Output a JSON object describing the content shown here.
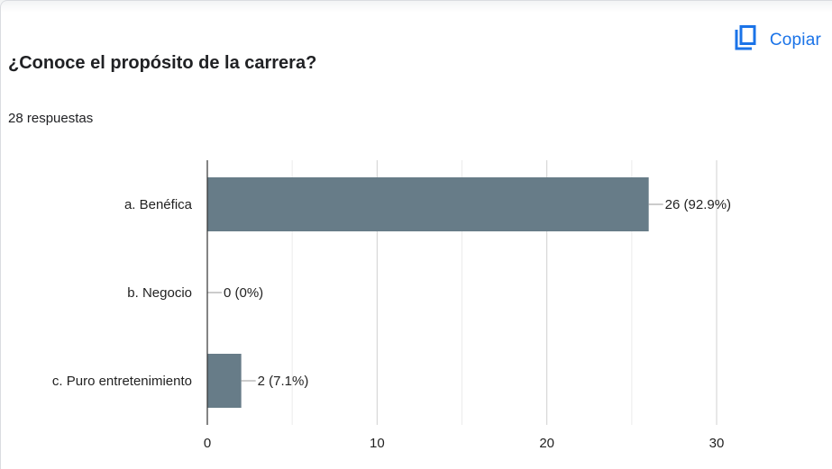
{
  "header": {
    "copy_label": "Copiar",
    "copy_icon": "copy-icon",
    "accent_color": "#1a73e8"
  },
  "question": {
    "title": "¿Conoce el propósito de la carrera?",
    "response_count": "28 respuestas"
  },
  "chart_data": {
    "type": "bar",
    "orientation": "horizontal",
    "categories": [
      "a. Benéfica",
      "b. Negocio",
      "c. Puro entretenimiento"
    ],
    "values": [
      26,
      0,
      2
    ],
    "data_labels": [
      "26 (92.9%)",
      "0 (0%)",
      "2 (7.1%)"
    ],
    "xlim": [
      0,
      30
    ],
    "x_ticks": [
      0,
      10,
      20,
      30
    ],
    "grid": true,
    "bar_color": "#677c88",
    "title": "",
    "xlabel": "",
    "ylabel": ""
  }
}
